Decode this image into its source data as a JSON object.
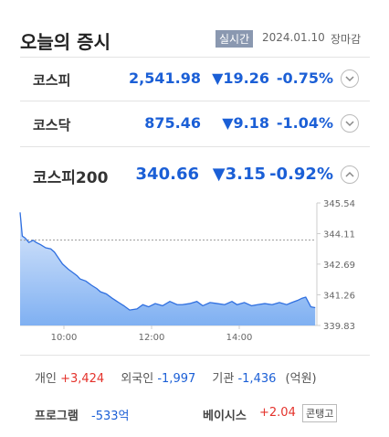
{
  "header": {
    "title": "오늘의 증시",
    "badge": "실시간",
    "date": "2024.01.10",
    "status": "장마감"
  },
  "indices": [
    {
      "name": "코스피",
      "price": "2,541.98",
      "change": "▼19.26",
      "rate": "-0.75%"
    },
    {
      "name": "코스닥",
      "price": "875.46",
      "change": "▼9.18",
      "rate": "-1.04%"
    },
    {
      "name": "코스피200",
      "price": "340.66",
      "change": "▼3.15",
      "rate": "-0.92%"
    }
  ],
  "chart_data": {
    "type": "line",
    "x": [
      0,
      3,
      7,
      12,
      18,
      22,
      28,
      35,
      42,
      47,
      52,
      58,
      66,
      72,
      78,
      82,
      90,
      98,
      105,
      110,
      118,
      126,
      135,
      142,
      150,
      160,
      168,
      176,
      185,
      195,
      205,
      215,
      222,
      232,
      242,
      250,
      260,
      270,
      280,
      290,
      297,
      307,
      317,
      325,
      335,
      345,
      355,
      365,
      372,
      380,
      386,
      391,
      398,
      404
    ],
    "series": [
      {
        "color": "#2f6fe0",
        "values": [
          345.1,
          344.0,
          343.9,
          343.7,
          343.8,
          343.7,
          343.6,
          343.45,
          343.4,
          343.25,
          343.0,
          342.7,
          342.45,
          342.3,
          342.15,
          342.0,
          341.9,
          341.7,
          341.55,
          341.4,
          341.3,
          341.1,
          340.9,
          340.75,
          340.55,
          340.6,
          340.8,
          340.7,
          340.85,
          340.75,
          340.95,
          340.8,
          340.8,
          340.85,
          340.95,
          340.75,
          340.9,
          340.85,
          340.8,
          340.95,
          340.8,
          340.9,
          340.75,
          340.8,
          340.85,
          340.8,
          340.9,
          340.8,
          340.9,
          341.0,
          341.1,
          341.15,
          340.7,
          340.66
        ]
      }
    ],
    "reference_line": 343.81,
    "xlim": [
      0,
      405
    ],
    "xticks": [
      {
        "value": 60,
        "label": "10:00"
      },
      {
        "value": 180,
        "label": "12:00"
      },
      {
        "value": 300,
        "label": "14:00"
      }
    ],
    "ylim": [
      339.83,
      345.54
    ],
    "yticks": [
      345.54,
      344.11,
      342.69,
      341.26,
      339.83
    ]
  },
  "investors": [
    {
      "label": "개인",
      "value": "+3,424"
    },
    {
      "label": "외국인",
      "value": "-1,997"
    },
    {
      "label": "기관",
      "value": "-1,436"
    }
  ],
  "unit": "(억원)",
  "program": {
    "label": "프로그램",
    "value": "-533억"
  },
  "basis": {
    "label": "베이시스",
    "value": "+2.04",
    "state": "콘탱고"
  }
}
